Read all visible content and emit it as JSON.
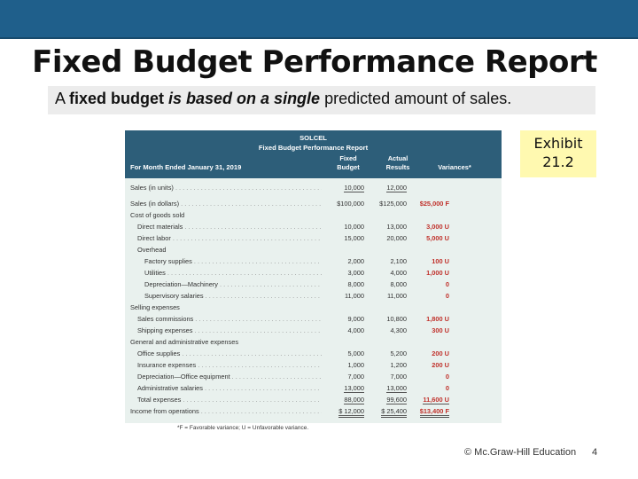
{
  "slide": {
    "title": "Fixed Budget Performance Report",
    "subtitle": {
      "part1": "A ",
      "part2": "fixed budget ",
      "part3": "is based on a single",
      "part4": " predicted amount of sales."
    },
    "exhibit": {
      "line1": "Exhibit",
      "line2": "21.2"
    },
    "copyright": "© Mc.Graw-Hill Education",
    "page_number": "4"
  },
  "report": {
    "company": "SOLCEL",
    "title": "Fixed Budget Performance Report",
    "period": "For Month Ended January 31, 2019",
    "columns": {
      "fixed_line1": "Fixed",
      "fixed_line2": "Budget",
      "actual_line1": "Actual",
      "actual_line2": "Results",
      "variances": "Variances*"
    },
    "rows": [
      {
        "label": "Sales (in units)",
        "fixed": "10,000",
        "actual": "12,000",
        "variance": ""
      },
      {
        "label": "Sales (in dollars)",
        "fixed": "$100,000",
        "actual": "$125,000",
        "variance": "$25,000 F"
      },
      {
        "label": "Cost of goods sold",
        "fixed": "",
        "actual": "",
        "variance": ""
      },
      {
        "label": "Direct materials",
        "fixed": "10,000",
        "actual": "13,000",
        "variance": "3,000 U"
      },
      {
        "label": "Direct labor",
        "fixed": "15,000",
        "actual": "20,000",
        "variance": "5,000 U"
      },
      {
        "label": "Overhead",
        "fixed": "",
        "actual": "",
        "variance": ""
      },
      {
        "label": "Factory supplies",
        "fixed": "2,000",
        "actual": "2,100",
        "variance": "100 U"
      },
      {
        "label": "Utilities",
        "fixed": "3,000",
        "actual": "4,000",
        "variance": "1,000 U"
      },
      {
        "label": "Depreciation—Machinery",
        "fixed": "8,000",
        "actual": "8,000",
        "variance": "0"
      },
      {
        "label": "Supervisory salaries",
        "fixed": "11,000",
        "actual": "11,000",
        "variance": "0"
      },
      {
        "label": "Selling expenses",
        "fixed": "",
        "actual": "",
        "variance": ""
      },
      {
        "label": "Sales commissions",
        "fixed": "9,000",
        "actual": "10,800",
        "variance": "1,800 U"
      },
      {
        "label": "Shipping expenses",
        "fixed": "4,000",
        "actual": "4,300",
        "variance": "300 U"
      },
      {
        "label": "General and administrative expenses",
        "fixed": "",
        "actual": "",
        "variance": ""
      },
      {
        "label": "Office supplies",
        "fixed": "5,000",
        "actual": "5,200",
        "variance": "200 U"
      },
      {
        "label": "Insurance expenses",
        "fixed": "1,000",
        "actual": "1,200",
        "variance": "200 U"
      },
      {
        "label": "Depreciation—Office equipment",
        "fixed": "7,000",
        "actual": "7,000",
        "variance": "0"
      },
      {
        "label": "Administrative salaries",
        "fixed": "13,000",
        "actual": "13,000",
        "variance": "0"
      },
      {
        "label": "Total expenses",
        "fixed": "88,000",
        "actual": "99,600",
        "variance": "11,600 U"
      },
      {
        "label": "Income from operations",
        "fixed": "$ 12,000",
        "actual": "$ 25,400",
        "variance": "$13,400 F"
      }
    ],
    "footnote": "*F = Favorable variance; U = Unfavorable variance."
  }
}
